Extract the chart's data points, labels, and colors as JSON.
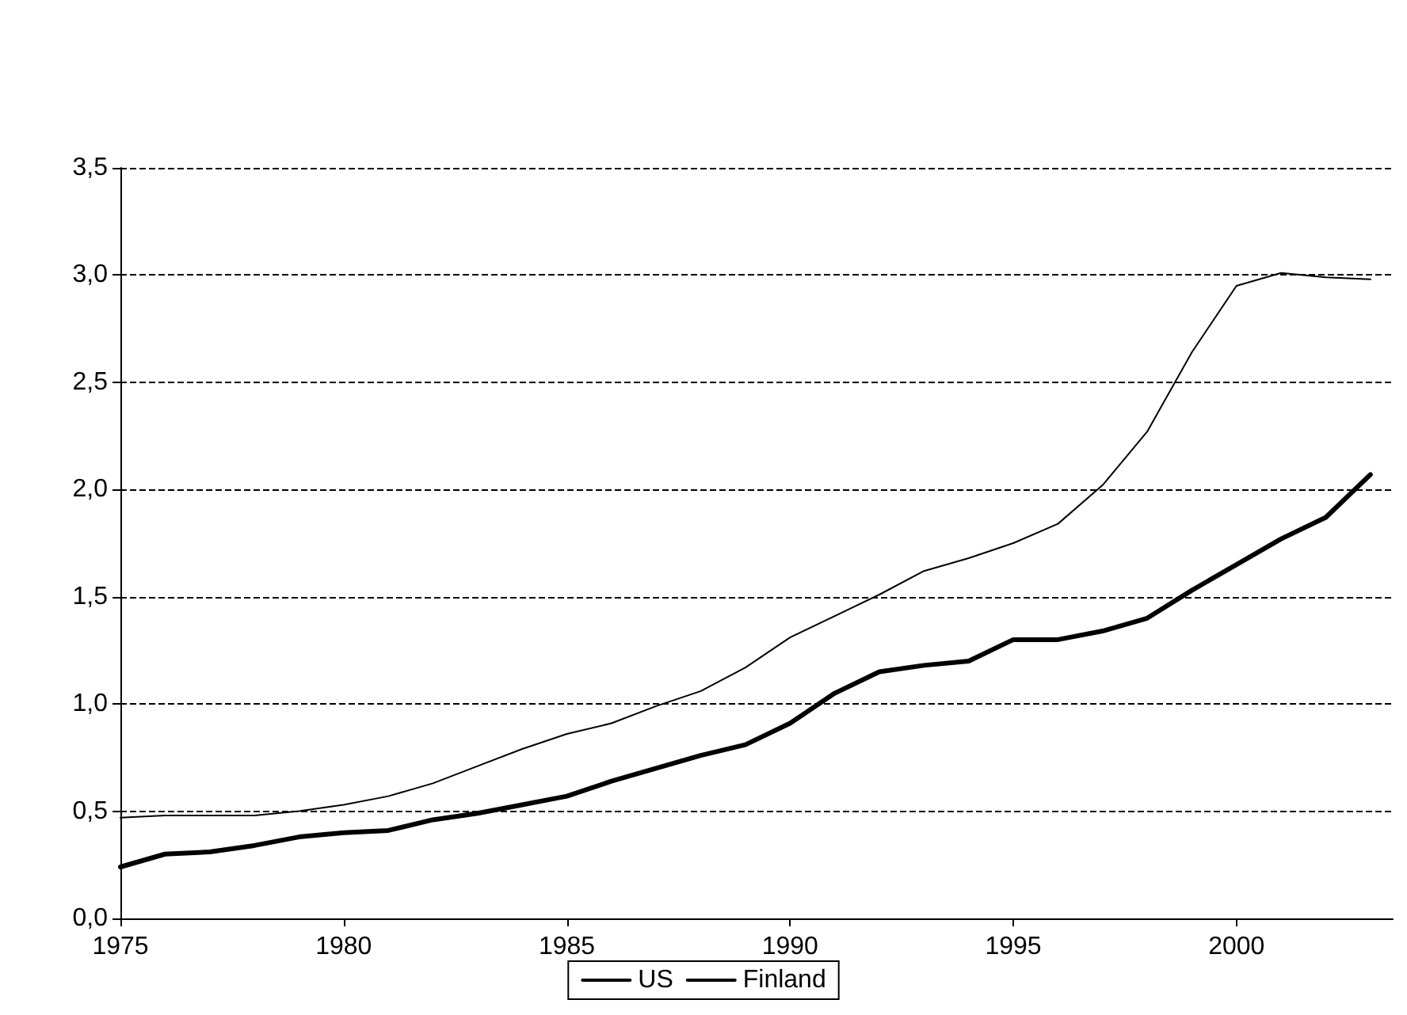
{
  "chart_data": {
    "type": "line",
    "x": [
      1975,
      1976,
      1977,
      1978,
      1979,
      1980,
      1981,
      1982,
      1983,
      1984,
      1985,
      1986,
      1987,
      1988,
      1989,
      1990,
      1991,
      1992,
      1993,
      1994,
      1995,
      1996,
      1997,
      1998,
      1999,
      2000,
      2001,
      2002,
      2003
    ],
    "series": [
      {
        "name": "US",
        "color": "#000000",
        "values": [
          0.47,
          0.48,
          0.48,
          0.48,
          0.5,
          0.53,
          0.57,
          0.63,
          0.71,
          0.79,
          0.86,
          0.91,
          0.99,
          1.06,
          1.17,
          1.31,
          1.41,
          1.51,
          1.62,
          1.68,
          1.75,
          1.84,
          2.02,
          2.27,
          2.64,
          2.95,
          3.01,
          2.99,
          2.98
        ]
      },
      {
        "name": "Finland",
        "color": "#000000",
        "values": [
          0.24,
          0.3,
          0.31,
          0.34,
          0.38,
          0.4,
          0.41,
          0.46,
          0.49,
          0.53,
          0.57,
          0.64,
          0.7,
          0.76,
          0.81,
          0.91,
          1.05,
          1.15,
          1.18,
          1.2,
          1.3,
          1.3,
          1.34,
          1.4,
          1.53,
          1.65,
          1.77,
          1.87,
          2.07
        ]
      }
    ],
    "xlim": [
      1975,
      2003.5
    ],
    "xticks": [
      1975,
      1980,
      1985,
      1990,
      1995,
      2000
    ],
    "ylim": [
      0,
      3.5
    ],
    "yticks": [
      {
        "value": 0,
        "label": "0,0"
      },
      {
        "value": 0.5,
        "label": "0,5"
      },
      {
        "value": 1,
        "label": "1,0"
      },
      {
        "value": 1.5,
        "label": "1,5"
      },
      {
        "value": 2,
        "label": "2,0"
      },
      {
        "value": 2.5,
        "label": "2,5"
      },
      {
        "value": 3,
        "label": "3,0"
      },
      {
        "value": 3.5,
        "label": "3,5"
      }
    ],
    "grid": "y",
    "legend": "bottom",
    "marker": "none",
    "line_style": "solid"
  }
}
